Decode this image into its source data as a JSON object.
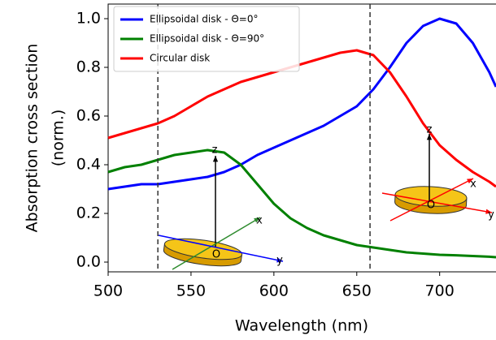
{
  "chart_data": {
    "type": "line",
    "xlabel": "Wavelength (nm)",
    "ylabel": [
      "Absorption cross section",
      "(norm.)"
    ],
    "x": [
      500,
      510,
      520,
      530,
      540,
      550,
      560,
      570,
      580,
      590,
      600,
      610,
      620,
      630,
      640,
      650,
      660,
      670,
      680,
      690,
      700,
      710,
      720,
      730,
      734
    ],
    "series": [
      {
        "name": "Ellipsoidal disk - Θ=0°",
        "color": "#0000ff",
        "values": [
          0.3,
          0.31,
          0.32,
          0.32,
          0.33,
          0.34,
          0.35,
          0.37,
          0.4,
          0.44,
          0.47,
          0.5,
          0.53,
          0.56,
          0.6,
          0.64,
          0.71,
          0.8,
          0.9,
          0.97,
          1.0,
          0.98,
          0.9,
          0.78,
          0.72
        ]
      },
      {
        "name": "Ellipsoidal disk - Θ=90°",
        "color": "#008000",
        "values": [
          0.37,
          0.39,
          0.4,
          0.42,
          0.44,
          0.45,
          0.46,
          0.45,
          0.4,
          0.32,
          0.24,
          0.18,
          0.14,
          0.11,
          0.09,
          0.07,
          0.06,
          0.05,
          0.04,
          0.035,
          0.03,
          0.028,
          0.025,
          0.022,
          0.02
        ]
      },
      {
        "name": "Circular disk",
        "color": "#ff0000",
        "values": [
          0.51,
          0.53,
          0.55,
          0.57,
          0.6,
          0.64,
          0.68,
          0.71,
          0.74,
          0.76,
          0.78,
          0.8,
          0.82,
          0.84,
          0.86,
          0.87,
          0.85,
          0.78,
          0.68,
          0.57,
          0.48,
          0.42,
          0.37,
          0.33,
          0.31
        ]
      }
    ],
    "xlim": [
      500,
      734
    ],
    "ylim": [
      -0.04,
      1.06
    ],
    "xticks": [
      500,
      550,
      600,
      650,
      700
    ],
    "yticks": [
      {
        "value": 0,
        "label": "0.0"
      },
      0.2,
      0.4,
      0.6,
      0.8,
      {
        "value": 1,
        "label": "1.0"
      }
    ],
    "vlines": [
      530,
      658
    ],
    "legend": "upper left",
    "inset_labels": [
      [
        "z",
        "x",
        "y",
        "O"
      ],
      [
        "z",
        "x",
        "y",
        "O"
      ]
    ]
  }
}
